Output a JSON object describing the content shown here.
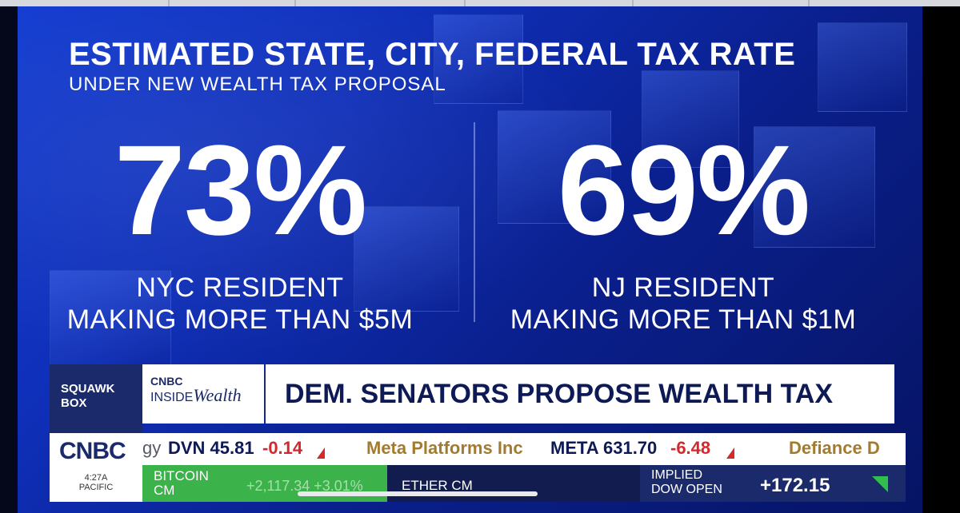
{
  "graphic": {
    "headline": "ESTIMATED STATE, CITY, FEDERAL TAX RATE",
    "subhead": "UNDER NEW WEALTH TAX PROPOSAL",
    "stats": [
      {
        "value": "73%",
        "label_line1": "NYC RESIDENT",
        "label_line2": "MAKING MORE THAN $5M"
      },
      {
        "value": "69%",
        "label_line1": "NJ RESIDENT",
        "label_line2": "MAKING MORE THAN $1M"
      }
    ]
  },
  "lower_third": {
    "show": "SQUAWK BOX",
    "show_line1": "SQUAWK",
    "show_line2": "BOX",
    "segment_brand_top": "CNBC",
    "segment_brand_inside": "INSIDE",
    "segment_brand_wealth": "Wealth",
    "headline": "DEM. SENATORS PROPOSE WEALTH TAX",
    "network_logo": "CNBC",
    "time": "4:27A",
    "timezone": "PACIFIC"
  },
  "ticker": {
    "items": [
      {
        "text": "gy",
        "style": "grey"
      },
      {
        "text": "DVN 45.81",
        "style": "dark"
      },
      {
        "text": "-0.14",
        "style": "red"
      },
      {
        "text": "Meta Platforms Inc",
        "style": "gold"
      },
      {
        "text": "META 631.70",
        "style": "dark"
      },
      {
        "text": "-6.48",
        "style": "red"
      },
      {
        "text": "Defiance D",
        "style": "gold"
      }
    ]
  },
  "markets": {
    "btc_name_line1": "BITCOIN",
    "btc_name_line2": "CM",
    "btc_value": "+2,117.34 +3.01%",
    "eth_name": "ETHER CM",
    "dow_name_line1": "IMPLIED",
    "dow_name_line2": "DOW OPEN",
    "dow_value": "+172.15"
  },
  "colors": {
    "background": "#0f2fb8",
    "ticker_red": "#d2282e",
    "ticker_gold": "#a37b2e",
    "btc_green": "#3cb34a",
    "navy": "#1a2a6a"
  }
}
